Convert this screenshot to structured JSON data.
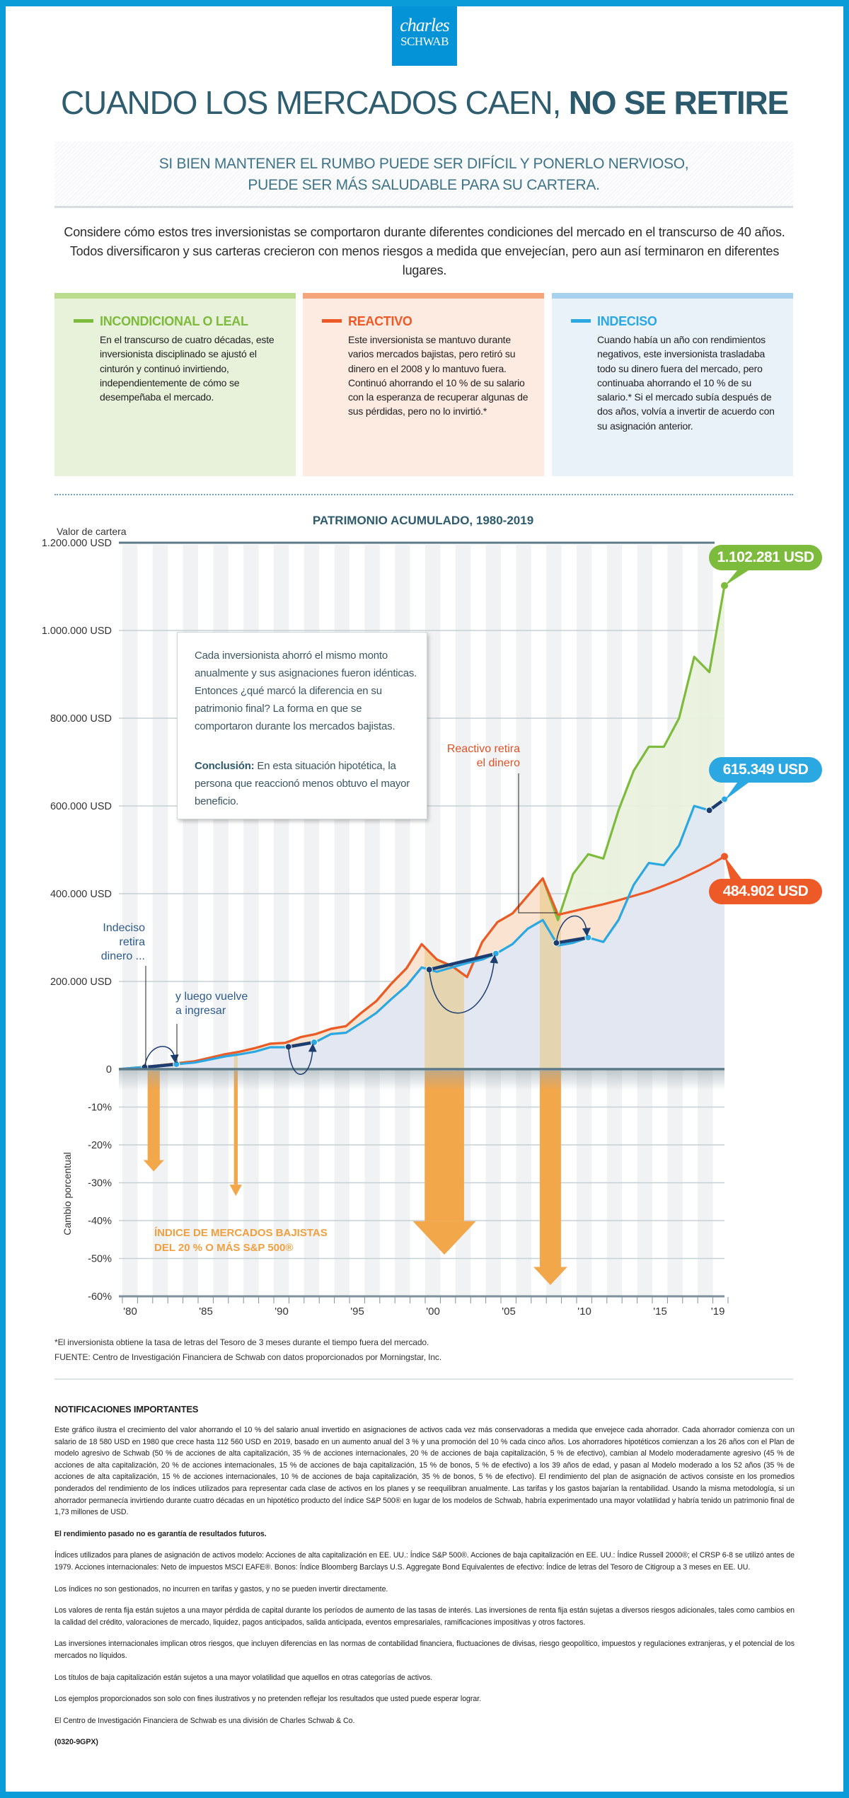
{
  "brand": {
    "line1": "charles",
    "line2": "SCHWAB",
    "color": "#0593d7"
  },
  "header": {
    "title_light": "CUANDO LOS MERCADOS CAEN, ",
    "title_bold": "NO SE RETIRE",
    "subtitle_line1": "SI BIEN MANTENER EL RUMBO PUEDE SER DIFÍCIL Y PONERLO NERVIOSO,",
    "subtitle_line2": "PUEDE SER MÁS SALUDABLE PARA SU CARTERA.",
    "intro": "Considere cómo estos tres inversionistas se comportaron durante diferentes condiciones del mercado en el transcurso de 40 años. Todos diversificaron y sus carteras crecieron con menos riesgos a medida que envejecían, pero aun así terminaron en diferentes lugares."
  },
  "cards": [
    {
      "title": "INCONDICIONAL O LEAL",
      "color": "#7dbb3c",
      "bar": "#bcdb8e",
      "bg": "#e8f1da",
      "text": "En el transcurso de cuatro décadas, este inversionista disciplinado se ajustó el cinturón y continuó invirtiendo, independientemente de cómo se desempeñaba el mercado."
    },
    {
      "title": "REACTIVO",
      "color": "#ee5a27",
      "bar": "#f5a57c",
      "bg": "#fdeae0",
      "text": "Este inversionista se mantuvo durante varios mercados bajistas, pero retiró su dinero en el 2008 y lo mantuvo fuera. Continuó ahorrando el 10 % de su salario con la esperanza de recuperar algunas de sus pérdidas, pero no lo invirtió.*"
    },
    {
      "title": "INDECISO",
      "color": "#2ba7e1",
      "bar": "#a8d2eb",
      "bg": "#e9f1f9",
      "text": "Cuando había un año con rendimientos negativos, este inversionista trasladaba todo su dinero fuera del mercado, pero continuaba ahorrando el 10 % de su salario.* Si el mercado subía después de dos años, volvía a invertir de acuerdo con su asignación anterior."
    }
  ],
  "callout": {
    "text": "Cada inversionista ahorró el mismo monto anualmente y sus asignaciones fueron idénticas. Entonces ¿qué marcó la diferencia en su patrimonio final? La forma en que se comportaron durante los mercados bajistas.",
    "conclusion_label": "Conclusión:",
    "conclusion_text": " En esta situación hipotética, la persona que reaccionó menos obtuvo el mayor beneficio."
  },
  "annotations": {
    "indeciso_out": [
      "Indeciso",
      "retira",
      "dinero ..."
    ],
    "indeciso_in": [
      "y luego vuelve",
      "a ingresar"
    ],
    "reactivo_out": [
      "Reactivo retira",
      "el dinero"
    ],
    "bear_label": [
      "ÍNDICE DE MERCADOS BAJISTAS",
      "DEL 20 % O MÁS S&P 500®"
    ]
  },
  "chart_data": {
    "type": "line",
    "title": "PATRIMONIO ACUMULADO, 1980-2019",
    "ylabel": "Valor de cartera",
    "ylabel_lower": "Cambio porcentual",
    "ylim": [
      0,
      1200000
    ],
    "ylim_lower": [
      -60,
      0
    ],
    "y_ticks": [
      "1.200.000 USD",
      "1.000.000 USD",
      "800.000 USD",
      "600.000 USD",
      "400.000 USD",
      "200.000 USD",
      "0"
    ],
    "y_tick_values": [
      1200000,
      1000000,
      800000,
      600000,
      400000,
      200000,
      0
    ],
    "y_ticks_lower": [
      "-10%",
      "-20%",
      "-30%",
      "-40%",
      "-50%",
      "-60%"
    ],
    "y_tick_values_lower": [
      -10,
      -20,
      -30,
      -40,
      -50,
      -60
    ],
    "x_ticks": [
      "'80",
      "'85",
      "'90",
      "'95",
      "'00",
      "'05",
      "'10",
      "'15",
      "'19"
    ],
    "x_tick_years": [
      1980,
      1985,
      1990,
      1995,
      2000,
      2005,
      2010,
      2015,
      2019
    ],
    "grid": true,
    "years": [
      1980,
      1981,
      1982,
      1983,
      1984,
      1985,
      1986,
      1987,
      1988,
      1989,
      1990,
      1991,
      1992,
      1993,
      1994,
      1995,
      1996,
      1997,
      1998,
      1999,
      2000,
      2001,
      2002,
      2003,
      2004,
      2005,
      2006,
      2007,
      2008,
      2009,
      2010,
      2011,
      2012,
      2013,
      2014,
      2015,
      2016,
      2017,
      2018,
      2019
    ],
    "series": [
      {
        "name": "INCONDICIONAL O LEAL",
        "color": "#7dbb3c",
        "fill": "#e9f2dd",
        "final_label": "1.102.281 USD",
        "values": [
          3000,
          6000,
          10000,
          14000,
          18000,
          26000,
          34000,
          40000,
          48000,
          58000,
          60000,
          73000,
          80000,
          92000,
          98000,
          128000,
          155000,
          195000,
          230000,
          285000,
          250000,
          235000,
          210000,
          290000,
          335000,
          355000,
          395000,
          435000,
          340000,
          445000,
          490000,
          480000,
          590000,
          680000,
          735000,
          735000,
          800000,
          940000,
          905000,
          1102281
        ]
      },
      {
        "name": "REACTIVO",
        "color": "#ee5a27",
        "fill": "#fde1d0",
        "final_label": "484.902 USD",
        "values": [
          3000,
          6000,
          10000,
          14000,
          18000,
          26000,
          34000,
          40000,
          48000,
          58000,
          60000,
          73000,
          80000,
          92000,
          98000,
          128000,
          155000,
          195000,
          230000,
          285000,
          250000,
          235000,
          210000,
          290000,
          335000,
          355000,
          395000,
          435000,
          352000,
          360000,
          368000,
          376000,
          385000,
          395000,
          405000,
          418000,
          432000,
          448000,
          465000,
          484902
        ]
      },
      {
        "name": "INDECISO",
        "color": "#2ba7e1",
        "fill": "#dfe7f4",
        "final_label": "615.349 USD",
        "values": [
          3000,
          5000,
          8000,
          12000,
          15000,
          22000,
          29000,
          34000,
          40000,
          50000,
          50000,
          55000,
          62000,
          80000,
          83000,
          105000,
          128000,
          160000,
          190000,
          232000,
          222000,
          232000,
          242000,
          250000,
          265000,
          285000,
          320000,
          340000,
          282000,
          288000,
          300000,
          290000,
          340000,
          420000,
          470000,
          465000,
          510000,
          600000,
          590000,
          615349
        ],
        "out_of_market_periods": [
          [
            1981.7,
            1983.8
          ],
          [
            1991.2,
            1992.9
          ],
          [
            2000.5,
            2004.9
          ],
          [
            2008.9,
            2011.0
          ],
          [
            2019.0,
            2020.0
          ]
        ],
        "out_color": "#1c3d70"
      }
    ],
    "bear_markets": [
      {
        "start": 1981.9,
        "end": 1982.7,
        "decline_pct": -27
      },
      {
        "start": 1987.6,
        "end": 1987.85,
        "decline_pct": -33.5
      },
      {
        "start": 2000.2,
        "end": 2002.8,
        "decline_pct": -49
      },
      {
        "start": 2007.8,
        "end": 2009.2,
        "decline_pct": -57
      }
    ],
    "bear_color": "#f3a74b"
  },
  "footnotes": {
    "asterisk": "*El inversionista obtiene la tasa de letras del Tesoro de 3 meses durante el tiempo fuera del mercado.",
    "source": "FUENTE: Centro de Investigación Financiera de Schwab con datos proporcionados por Morningstar, Inc."
  },
  "notes": {
    "title": "NOTIFICACIONES IMPORTANTES",
    "p1": "Este gráfico ilustra el crecimiento del valor ahorrando el 10 % del salario anual invertido en asignaciones de activos cada vez más conservadoras a medida que envejece cada ahorrador. Cada ahorrador comienza con un salario de 18 580 USD en 1980 que crece hasta 112 560 USD en 2019, basado en un aumento anual del 3 % y una promoción del 10 % cada cinco años. Los ahorradores hipotéticos comienzan a los 26 años con el Plan de modelo agresivo de Schwab (50 % de acciones de alta capitalización, 35 % de acciones internacionales, 20 % de acciones de baja capitalización, 5 % de efectivo), cambian al Modelo moderadamente agresivo (45 % de acciones de alta capitalización, 20 % de acciones internacionales, 15 % de acciones de baja capitalización, 15 % de bonos, 5 % de efectivo) a los 39 años de edad, y pasan al Modelo moderado a los 52 años (35 % de acciones de alta capitalización, 15 % de acciones internacionales, 10 % de acciones de baja capitalización, 35 % de bonos, 5 % de efectivo). El rendimiento del plan de asignación de activos consiste en los promedios ponderados del rendimiento de los índices utilizados para representar cada clase de activos en los planes y se reequilibran anualmente. Las tarifas y los gastos bajarían la rentabilidad. Usando la misma metodología, si un ahorrador permanecía invirtiendo durante cuatro décadas en un hipotético producto del índice S&P 500® en lugar de los modelos de Schwab, habría experimentado una mayor volatilidad y habría tenido un patrimonio final de 1,73 millones de USD.",
    "p2": "El rendimiento pasado no es garantía de resultados futuros.",
    "p3": "Índices utilizados para planes de asignación de activos modelo: Acciones de alta capitalización en EE. UU.: Índice S&P 500®. Acciones de baja capitalización en EE. UU.: Índice Russell 2000®; el CRSP 6-8 se utilizó antes de 1979. Acciones internacionales: Neto de impuestos MSCI EAFE®. Bonos: Índice Bloomberg Barclays U.S. Aggregate Bond Equivalentes de efectivo: Índice de letras del Tesoro de Citigroup a 3 meses en EE. UU.",
    "p4": "Los índices no son gestionados, no incurren en tarifas y gastos, y no se pueden invertir directamente.",
    "p5": "Los valores de renta fija están sujetos a una mayor pérdida de capital durante los períodos de aumento de las tasas de interés. Las inversiones de renta fija están sujetas a diversos riesgos adicionales, tales como cambios en la calidad del crédito, valoraciones de mercado, liquidez, pagos anticipados, salida anticipada, eventos empresariales, ramificaciones impositivas y otros factores.",
    "p6": "Las inversiones internacionales implican otros riesgos, que incluyen diferencias en las normas de contabilidad financiera, fluctuaciones de divisas, riesgo geopolítico, impuestos y regulaciones extranjeras, y el potencial de los mercados no líquidos.",
    "p7": "Los títulos de baja capitalización están sujetos a una mayor volatilidad que aquellos en otras categorías de activos.",
    "p8": "Los ejemplos proporcionados son solo con fines ilustrativos y no pretenden reflejar los resultados que usted puede esperar lograr.",
    "p9": "El Centro de Investigación Financiera de Schwab es una división de Charles Schwab & Co.",
    "code": "(0320-9GPX)"
  }
}
